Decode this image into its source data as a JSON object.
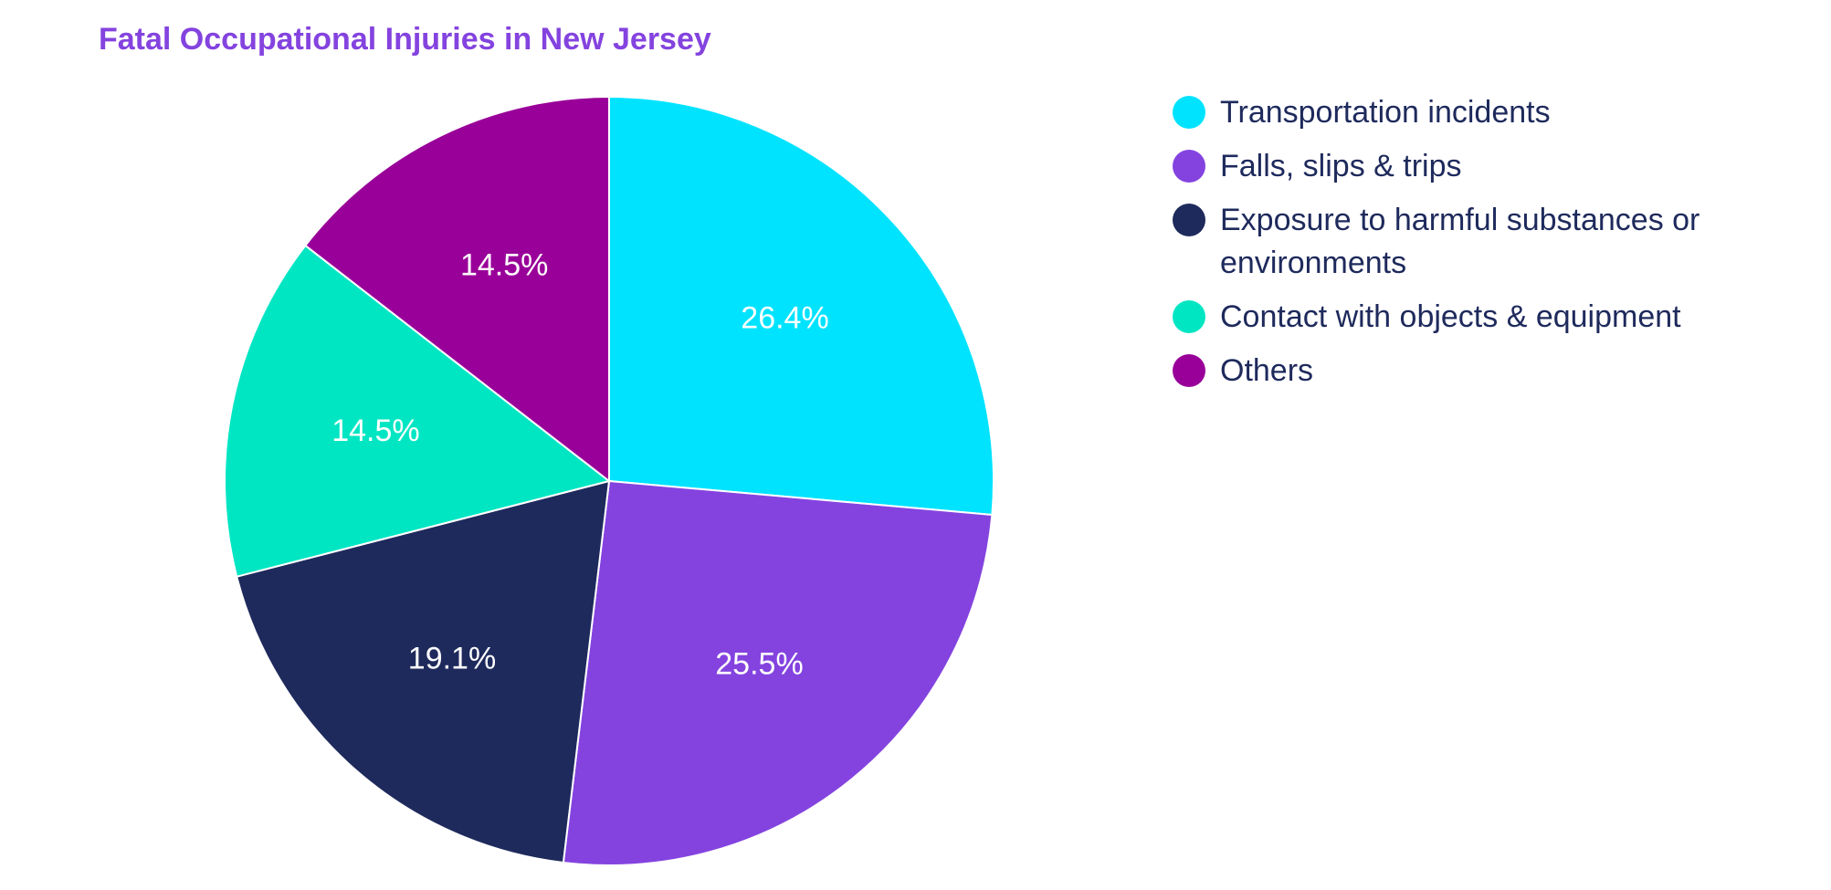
{
  "chart_data": {
    "type": "pie",
    "title": "Fatal Occupational Injuries in New Jersey",
    "legend_position": "right",
    "slices": [
      {
        "label": "Transportation incidents",
        "value": 26.4,
        "display": "26.4%",
        "color": "#00E3FF"
      },
      {
        "label": "Falls, slips & trips",
        "value": 25.5,
        "display": "25.5%",
        "color": "#8443DF"
      },
      {
        "label": "Exposure to harmful substances or environments",
        "value": 19.1,
        "display": "19.1%",
        "color": "#1E2A5C"
      },
      {
        "label": "Contact with objects & equipment",
        "value": 14.5,
        "display": "14.5%",
        "color": "#00E6C3"
      },
      {
        "label": "Others",
        "value": 14.5,
        "display": "14.5%",
        "color": "#990099"
      }
    ]
  }
}
